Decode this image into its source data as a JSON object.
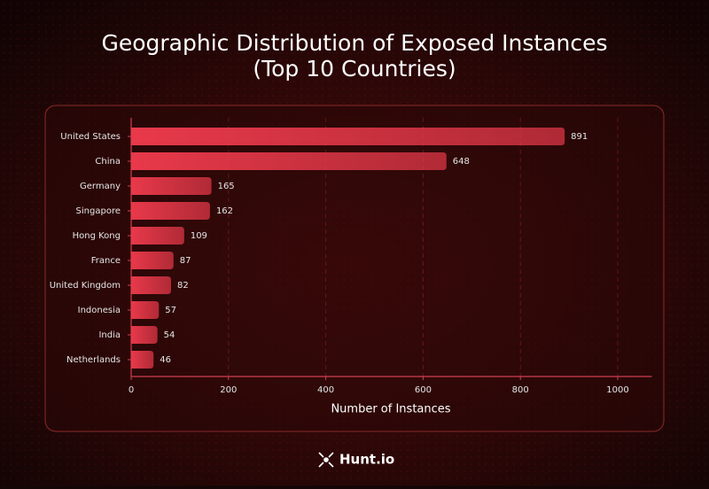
{
  "chart_data": {
    "type": "barh",
    "title": "Geographic Distribution of Exposed Instances",
    "subtitle": "(Top 10 Countries)",
    "x_label": "Number of Instances",
    "categories": [
      "United States",
      "China",
      "Germany",
      "Singapore",
      "Hong Kong",
      "France",
      "United Kingdom",
      "Indonesia",
      "India",
      "Netherlands"
    ],
    "values": [
      891,
      648,
      165,
      162,
      109,
      87,
      82,
      57,
      54,
      46
    ],
    "color": "#e8394a",
    "xlim": [
      0,
      1070
    ],
    "xticks": [
      0,
      200,
      400,
      600,
      800,
      1000
    ],
    "grid": true
  },
  "brand": "Hunt.io"
}
